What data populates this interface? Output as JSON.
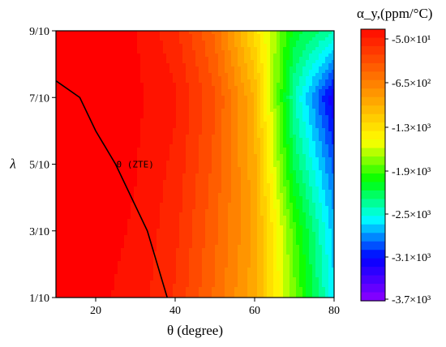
{
  "chart_data": {
    "type": "heatmap",
    "xlabel": "θ (degree)",
    "ylabel": "λ",
    "xlim": [
      10,
      80
    ],
    "ylim": [
      0.1,
      0.9
    ],
    "x_ticks": [
      20,
      40,
      60,
      80
    ],
    "y_ticks": [
      0.1,
      0.3,
      0.5,
      0.7,
      0.9
    ],
    "y_tick_labels": [
      "1/10",
      "3/10",
      "5/10",
      "7/10",
      "9/10"
    ],
    "x": [
      10,
      20,
      30,
      40,
      50,
      60,
      70,
      80
    ],
    "y": [
      0.1,
      0.3,
      0.5,
      0.7,
      0.9
    ],
    "z_ppm_per_C": [
      [
        -50,
        -80,
        -150,
        -350,
        -700,
        -1100,
        -1900,
        -2700
      ],
      [
        -50,
        -60,
        -120,
        -300,
        -650,
        -1050,
        -2000,
        -2800
      ],
      [
        -50,
        -50,
        -100,
        -250,
        -600,
        -1100,
        -2300,
        -3000
      ],
      [
        -50,
        -50,
        -80,
        -200,
        -550,
        -1150,
        -2500,
        -3300
      ],
      [
        -50,
        -50,
        -100,
        -300,
        -700,
        -1400,
        -2200,
        -2500
      ]
    ],
    "zero_contour": {
      "label": "0 (ZTE)",
      "x": [
        10,
        16,
        20,
        25,
        33,
        38
      ],
      "y": [
        0.75,
        0.7,
        0.6,
        0.5,
        0.3,
        0.1
      ]
    },
    "colorbar": {
      "title": "α_y,(ppm/°C)",
      "range": [
        -3700,
        -50
      ],
      "tick_labels": [
        "-5.0×10¹",
        "-6.5×10²",
        "-1.3×10³",
        "-1.9×10³",
        "-2.5×10³",
        "-3.1×10³",
        "-3.7×10³"
      ],
      "colormap": [
        "#ff0000",
        "#ff5500",
        "#ffaa00",
        "#ffff00",
        "#00ff00",
        "#00ffff",
        "#0000ff",
        "#8000ff"
      ]
    }
  }
}
